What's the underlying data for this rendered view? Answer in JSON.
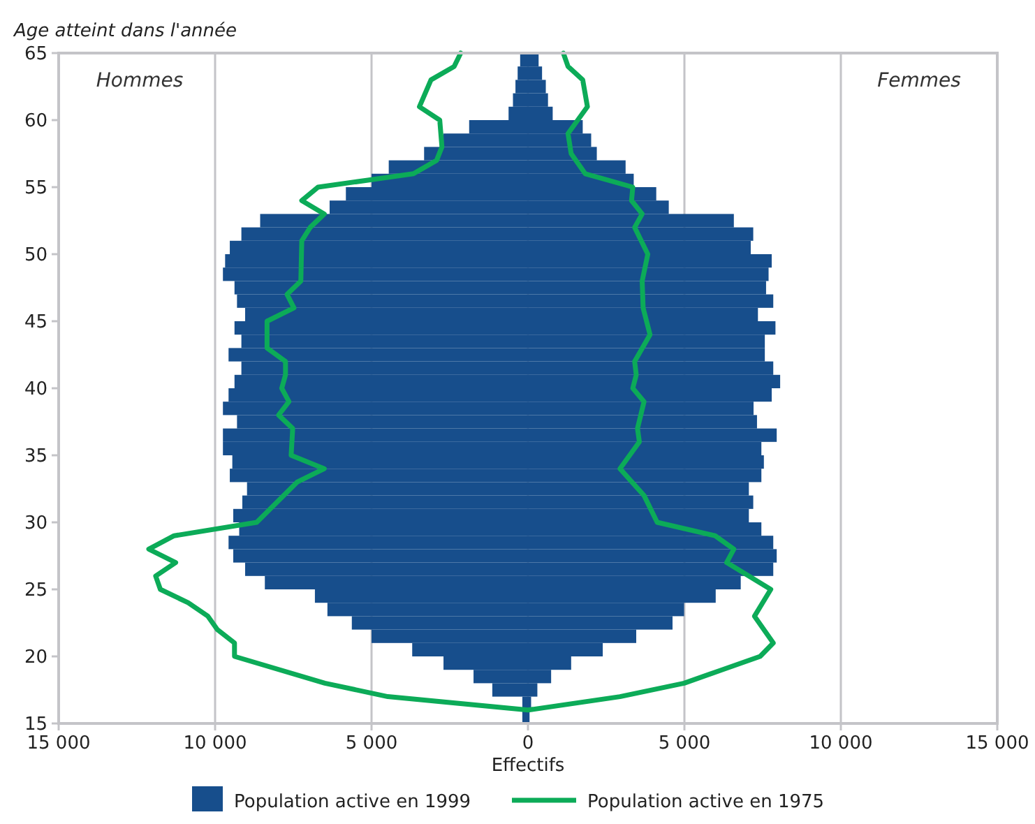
{
  "chart_data": {
    "type": "bar",
    "orientation": "horizontal",
    "ylabel": "Age atteint dans l'année",
    "xlabel": "Effectifs",
    "annotations": [
      "Hommes",
      "Femmes"
    ],
    "xlim": [
      -15000,
      15000
    ],
    "xticks": [
      {
        "value": -15000,
        "label": "15 000"
      },
      {
        "value": -10000,
        "label": "10 000"
      },
      {
        "value": -5000,
        "label": "5 000"
      },
      0,
      {
        "value": 5000,
        "label": "5 000"
      },
      {
        "value": 10000,
        "label": "10 000"
      },
      {
        "value": 15000,
        "label": "15 000"
      }
    ],
    "ylim": [
      15,
      65
    ],
    "yticks": [
      15,
      20,
      25,
      30,
      35,
      40,
      45,
      50,
      55,
      60,
      65
    ],
    "grid": "x",
    "legend": "bottom",
    "stacked": true,
    "x": [
      15.5,
      16.5,
      17.5,
      18.5,
      19.5,
      20.5,
      21.5,
      22.5,
      23.5,
      24.5,
      25.5,
      26.5,
      27.5,
      28.5,
      29.5,
      30.5,
      31.5,
      32.5,
      33.5,
      34.5,
      35.5,
      36.5,
      37.5,
      38.5,
      39.5,
      40.5,
      41.5,
      42.5,
      43.5,
      44.5,
      45.5,
      46.5,
      47.5,
      48.5,
      49.5,
      50.5,
      51.5,
      52.5,
      53.5,
      54.5,
      55.5,
      56.5,
      57.5,
      58.5,
      59.5,
      60.5,
      61.5,
      62.5,
      63.5,
      64.5
    ],
    "series": [
      {
        "name": "Population active en 1999",
        "color": "#174e8c",
        "values": [
          -180,
          -180,
          -1140,
          -1740,
          -2700,
          -3700,
          -5000,
          -5630,
          -6410,
          -6810,
          -8410,
          -9040,
          -9420,
          -9570,
          -9230,
          -9420,
          -9130,
          -8980,
          -9530,
          -9450,
          -9750,
          -9750,
          -9300,
          -9750,
          -9570,
          -9380,
          -9160,
          -9570,
          -9160,
          -9380,
          -9040,
          -9300,
          -9380,
          -9750,
          -9680,
          -9530,
          -9160,
          -8560,
          -6340,
          -5820,
          -5000,
          -4450,
          -3320,
          -2700,
          -1880,
          -620,
          -480,
          -400,
          -330,
          -250
        ]
      },
      {
        "color": "#174e8c",
        "values": [
          50,
          100,
          300,
          740,
          1380,
          2390,
          3460,
          4620,
          4990,
          6000,
          6800,
          7840,
          7950,
          7840,
          7460,
          7060,
          7200,
          7060,
          7460,
          7540,
          7460,
          7950,
          7320,
          7210,
          7790,
          8060,
          7840,
          7570,
          7570,
          7910,
          7350,
          7840,
          7610,
          7690,
          7790,
          7120,
          7200,
          6580,
          4500,
          4100,
          3380,
          3120,
          2200,
          2020,
          1750,
          790,
          640,
          570,
          450,
          340
        ]
      },
      {
        "name": "Population active en 1975",
        "type": "line",
        "color": "#0cab58",
        "x": [
          65,
          64,
          63,
          61,
          60,
          58,
          57,
          56,
          55,
          54,
          53,
          52,
          51,
          48,
          47,
          46,
          45,
          43,
          42,
          41,
          40,
          39,
          38,
          37,
          35,
          34,
          33,
          30,
          29,
          28,
          27,
          26,
          25,
          24,
          23,
          22,
          21,
          20,
          18,
          17,
          16,
          17,
          18,
          19,
          20,
          21,
          23,
          25,
          27,
          28,
          29,
          30,
          32,
          34,
          36,
          37,
          39,
          40,
          41,
          42,
          44,
          46,
          48,
          50,
          52,
          53,
          54,
          55,
          56,
          57.5,
          59,
          61,
          63,
          64,
          65
        ],
        "values": [
          -2150,
          -2360,
          -3100,
          -3470,
          -2820,
          -2750,
          -2920,
          -3660,
          -6710,
          -7230,
          -6510,
          -6960,
          -7230,
          -7260,
          -7700,
          -7480,
          -8340,
          -8340,
          -7750,
          -7750,
          -7870,
          -7640,
          -7970,
          -7520,
          -7570,
          -6510,
          -7380,
          -8670,
          -11310,
          -12120,
          -11260,
          -11900,
          -11750,
          -10860,
          -10230,
          -9930,
          -9380,
          -9380,
          -6490,
          -4480,
          0,
          2940,
          4990,
          6200,
          7420,
          7840,
          7240,
          7760,
          6350,
          6580,
          5980,
          4130,
          3710,
          2940,
          3560,
          3500,
          3710,
          3350,
          3460,
          3410,
          3900,
          3680,
          3650,
          3830,
          3410,
          3650,
          3310,
          3350,
          1830,
          1380,
          1280,
          1900,
          1750,
          1280,
          1130
        ]
      }
    ]
  }
}
